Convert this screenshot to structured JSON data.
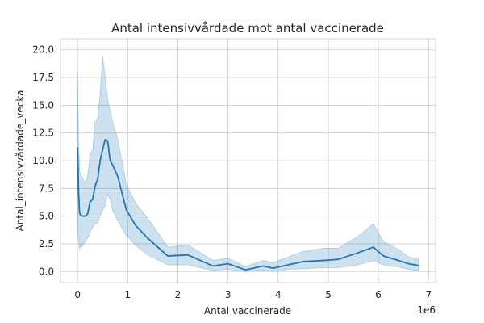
{
  "chart_data": {
    "type": "line",
    "title": "Antal intensivvårdade mot antal vaccinerade",
    "xlabel": "Antal vaccinerade",
    "ylabel": "Antal_intensivvårdade_vecka",
    "x_offset_label": "1e6",
    "xlim": [
      -0.34,
      7.14
    ],
    "ylim": [
      -1.0,
      21.0
    ],
    "grid": true,
    "x_ticks": [
      0,
      1,
      2,
      3,
      4,
      5,
      6,
      7
    ],
    "x_tick_labels": [
      "0",
      "1",
      "2",
      "3",
      "4",
      "5",
      "6",
      "7"
    ],
    "y_ticks": [
      0,
      2.5,
      5,
      7.5,
      10,
      12.5,
      15,
      17.5,
      20
    ],
    "y_tick_labels": [
      "0.0",
      "2.5",
      "5.0",
      "7.5",
      "10.0",
      "12.5",
      "15.0",
      "17.5",
      "20.0"
    ],
    "series": [
      {
        "color": "#1f77b4",
        "x": [
          0.0,
          0.01,
          0.02,
          0.04,
          0.06,
          0.1,
          0.15,
          0.2,
          0.25,
          0.3,
          0.35,
          0.4,
          0.45,
          0.5,
          0.55,
          0.6,
          0.65,
          0.7,
          0.8,
          0.97,
          1.15,
          1.4,
          1.8,
          2.2,
          2.7,
          3.0,
          3.35,
          3.7,
          3.9,
          4.2,
          4.5,
          4.9,
          5.2,
          5.6,
          5.9,
          6.1,
          6.4,
          6.6,
          6.8
        ],
        "y": [
          11.2,
          9.5,
          7.2,
          5.3,
          5.1,
          5.0,
          5.0,
          5.2,
          6.3,
          6.5,
          7.7,
          8.3,
          10.0,
          11.0,
          11.9,
          11.8,
          10.0,
          9.6,
          8.6,
          5.6,
          4.2,
          3.0,
          1.4,
          1.5,
          0.5,
          0.7,
          0.15,
          0.5,
          0.3,
          0.6,
          0.9,
          1.0,
          1.1,
          1.7,
          2.2,
          1.4,
          1.0,
          0.7,
          0.55
        ],
        "ci_upper": [
          18.0,
          15.0,
          12.0,
          9.0,
          8.8,
          8.4,
          8.0,
          8.6,
          10.5,
          11.0,
          13.5,
          13.8,
          16.0,
          19.5,
          17.5,
          15.5,
          14.5,
          13.5,
          12.0,
          7.9,
          6.2,
          4.8,
          2.2,
          2.4,
          1.0,
          1.2,
          0.45,
          1.0,
          0.8,
          1.3,
          1.8,
          2.1,
          2.1,
          3.2,
          4.3,
          2.7,
          2.0,
          1.3,
          1.2
        ],
        "ci_lower": [
          4.0,
          3.5,
          2.8,
          2.1,
          2.2,
          2.3,
          2.7,
          3.0,
          3.5,
          4.0,
          4.3,
          4.4,
          5.0,
          5.5,
          6.0,
          7.0,
          6.5,
          5.5,
          4.6,
          3.3,
          2.4,
          1.5,
          0.6,
          0.6,
          0.1,
          0.2,
          0.0,
          0.15,
          0.0,
          0.2,
          0.25,
          0.35,
          0.35,
          0.6,
          1.0,
          0.6,
          0.4,
          0.2,
          0.1
        ],
        "ci_color": "#1f77b4"
      }
    ]
  }
}
